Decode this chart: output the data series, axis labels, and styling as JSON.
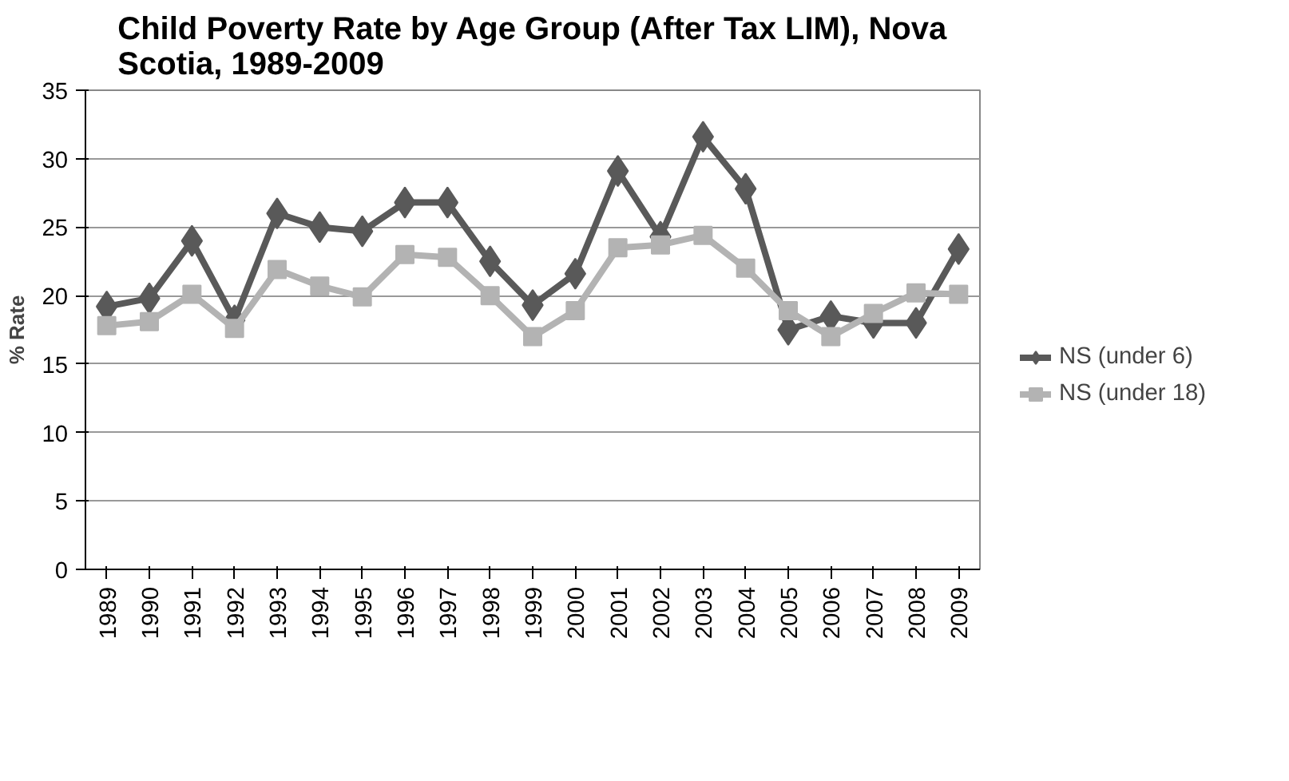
{
  "chart_data": {
    "type": "line",
    "title": "Child Poverty Rate by Age Group (After Tax LIM), Nova Scotia, 1989-2009",
    "ylabel": "% Rate",
    "categories": [
      "1989",
      "1990",
      "1991",
      "1992",
      "1993",
      "1994",
      "1995",
      "1996",
      "1997",
      "1998",
      "1999",
      "2000",
      "2001",
      "2002",
      "2003",
      "2004",
      "2005",
      "2006",
      "2007",
      "2008",
      "2009"
    ],
    "series": [
      {
        "name": "NS (under 6)",
        "color": "#595959",
        "marker": "diamond",
        "values": [
          19.2,
          19.8,
          24.0,
          18.2,
          26.0,
          25.0,
          24.7,
          26.8,
          26.8,
          22.5,
          19.3,
          21.6,
          29.1,
          24.3,
          31.6,
          27.8,
          17.5,
          18.5,
          18.0,
          18.0,
          23.4
        ]
      },
      {
        "name": "NS (under 18)",
        "color": "#b3b3b3",
        "marker": "square",
        "values": [
          17.8,
          18.1,
          20.1,
          17.6,
          21.9,
          20.7,
          19.9,
          23.0,
          22.8,
          20.0,
          17.0,
          18.9,
          23.5,
          23.7,
          24.4,
          22.0,
          18.9,
          17.0,
          18.7,
          20.2,
          20.1
        ]
      }
    ],
    "ylim": [
      0,
      35
    ],
    "yticks": [
      0,
      5,
      10,
      15,
      20,
      25,
      30,
      35
    ],
    "grid": "y",
    "legend": "right"
  }
}
